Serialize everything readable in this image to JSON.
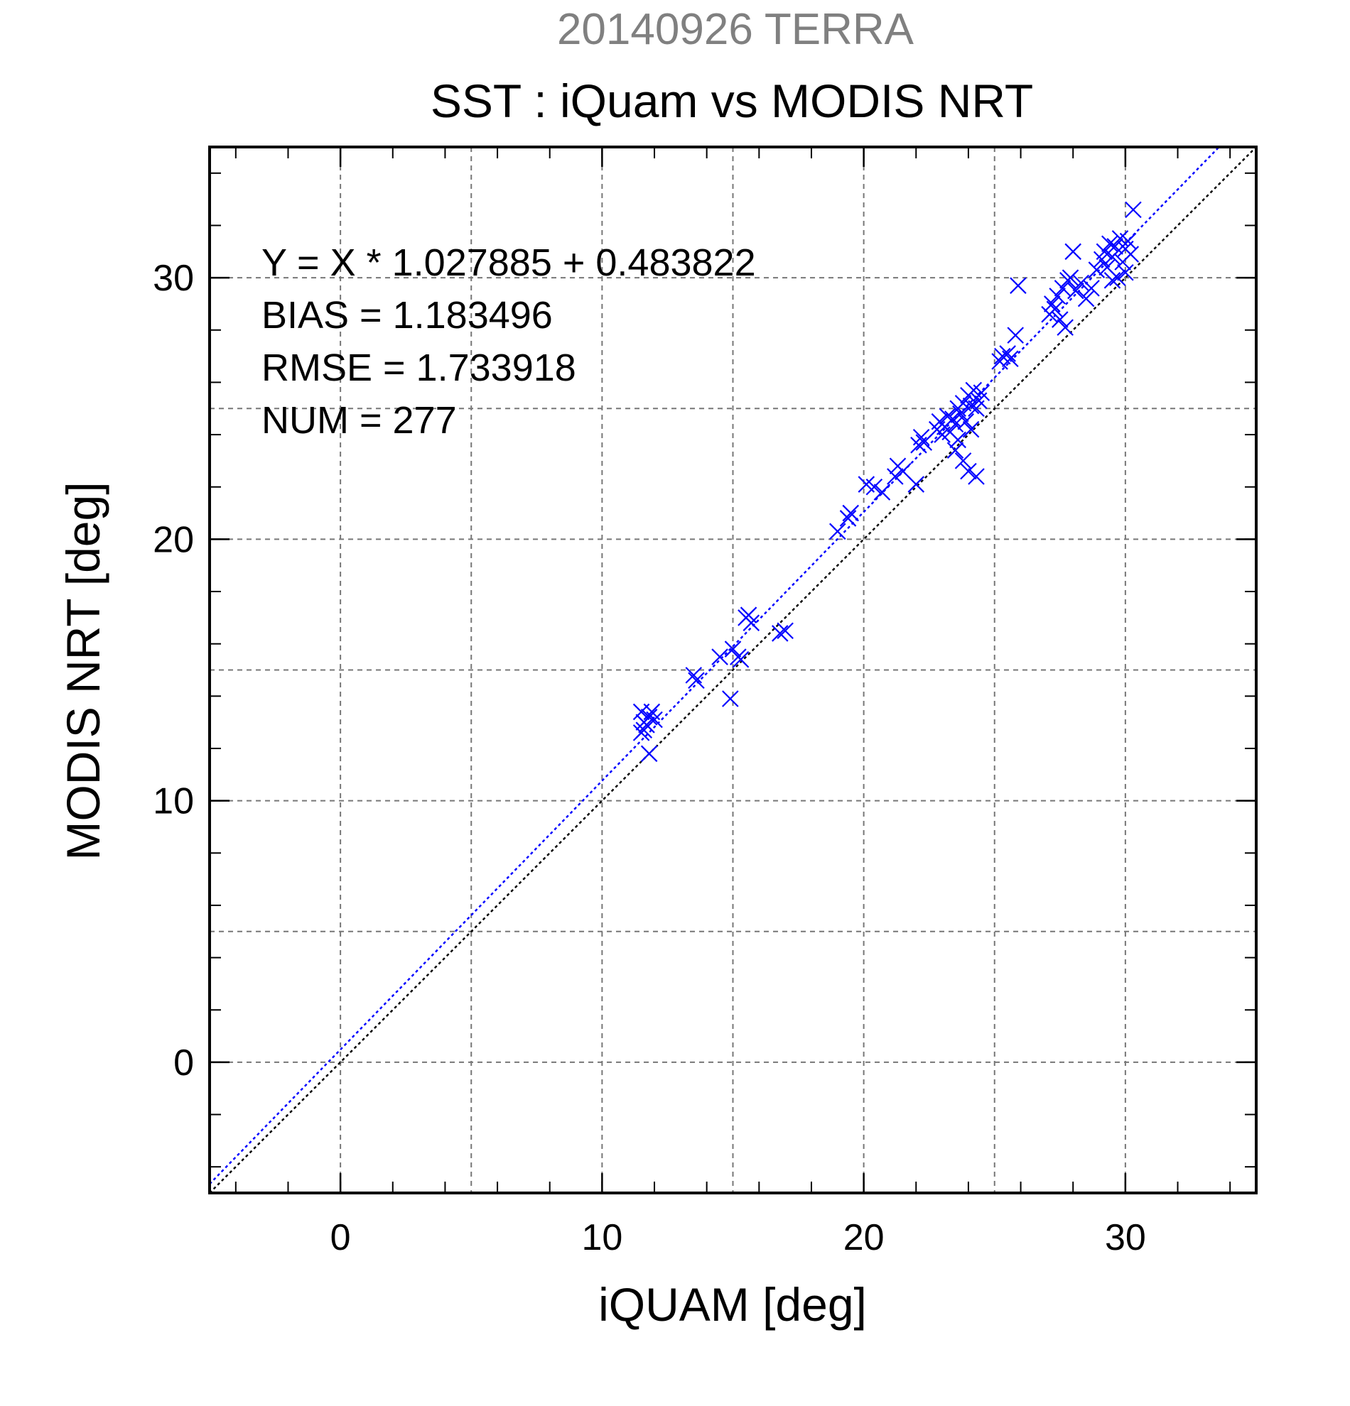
{
  "chart_data": {
    "type": "scatter",
    "suptitle": "20140926 TERRA",
    "title": "SST : iQuam vs MODIS NRT",
    "xlabel": "iQUAM [deg]",
    "ylabel": "MODIS NRT [deg]",
    "xlim": [
      -5,
      35
    ],
    "ylim": [
      -5,
      35
    ],
    "xticks": [
      0,
      10,
      20,
      30
    ],
    "yticks": [
      0,
      10,
      20,
      30
    ],
    "grid": true,
    "annotations": [
      "Y = X * 1.027885 + 0.483822",
      "BIAS = 1.183496",
      "RMSE = 1.733918",
      "NUM = 277"
    ],
    "fit": {
      "slope": 1.027885,
      "intercept": 0.483822
    },
    "colors": {
      "points": "#0000ff",
      "fit_line": "#0000ff",
      "identity_line": "#000000",
      "grid": "#777777",
      "suptitle": "#808080"
    },
    "points": [
      [
        11.5,
        12.6
      ],
      [
        11.6,
        13.0
      ],
      [
        11.5,
        13.4
      ],
      [
        11.7,
        12.9
      ],
      [
        11.8,
        13.2
      ],
      [
        11.9,
        13.4
      ],
      [
        12.0,
        13.1
      ],
      [
        11.6,
        12.7
      ],
      [
        11.8,
        11.8
      ],
      [
        13.5,
        14.8
      ],
      [
        13.6,
        14.6
      ],
      [
        14.5,
        15.5
      ],
      [
        14.9,
        13.9
      ],
      [
        15.0,
        15.8
      ],
      [
        15.2,
        15.5
      ],
      [
        15.3,
        15.4
      ],
      [
        15.5,
        17.0
      ],
      [
        15.6,
        17.1
      ],
      [
        15.7,
        16.8
      ],
      [
        16.8,
        16.4
      ],
      [
        17.0,
        16.5
      ],
      [
        19.0,
        20.3
      ],
      [
        19.4,
        20.8
      ],
      [
        19.5,
        21.0
      ],
      [
        20.1,
        22.1
      ],
      [
        20.4,
        22.0
      ],
      [
        20.7,
        21.8
      ],
      [
        21.2,
        22.4
      ],
      [
        21.3,
        22.8
      ],
      [
        21.5,
        22.6
      ],
      [
        22.0,
        22.1
      ],
      [
        22.1,
        23.6
      ],
      [
        22.2,
        23.9
      ],
      [
        22.3,
        23.7
      ],
      [
        22.8,
        24.2
      ],
      [
        22.9,
        24.5
      ],
      [
        23.0,
        24.0
      ],
      [
        23.1,
        24.3
      ],
      [
        23.2,
        24.7
      ],
      [
        23.3,
        24.1
      ],
      [
        23.4,
        24.6
      ],
      [
        23.5,
        24.4
      ],
      [
        23.6,
        25.0
      ],
      [
        23.7,
        24.8
      ],
      [
        23.8,
        25.2
      ],
      [
        23.9,
        24.5
      ],
      [
        24.0,
        25.5
      ],
      [
        24.1,
        25.1
      ],
      [
        24.2,
        25.7
      ],
      [
        24.3,
        25.0
      ],
      [
        24.4,
        25.3
      ],
      [
        24.5,
        25.6
      ],
      [
        23.5,
        23.4
      ],
      [
        23.8,
        23.0
      ],
      [
        24.0,
        22.6
      ],
      [
        24.3,
        22.4
      ],
      [
        23.6,
        23.8
      ],
      [
        24.1,
        24.2
      ],
      [
        25.2,
        26.8
      ],
      [
        25.3,
        27.0
      ],
      [
        25.5,
        27.1
      ],
      [
        25.6,
        26.9
      ],
      [
        25.8,
        27.8
      ],
      [
        25.9,
        29.7
      ],
      [
        27.1,
        28.6
      ],
      [
        27.2,
        29.0
      ],
      [
        27.3,
        28.8
      ],
      [
        27.4,
        29.3
      ],
      [
        27.5,
        28.4
      ],
      [
        27.6,
        29.6
      ],
      [
        27.7,
        28.1
      ],
      [
        27.8,
        29.9
      ],
      [
        27.9,
        30.0
      ],
      [
        28.0,
        31.0
      ],
      [
        28.1,
        29.5
      ],
      [
        28.3,
        29.8
      ],
      [
        28.5,
        29.2
      ],
      [
        28.7,
        29.6
      ],
      [
        28.9,
        30.3
      ],
      [
        29.1,
        30.7
      ],
      [
        29.2,
        31.0
      ],
      [
        29.3,
        30.4
      ],
      [
        29.4,
        31.3
      ],
      [
        29.5,
        30.8
      ],
      [
        29.6,
        31.2
      ],
      [
        29.7,
        30.0
      ],
      [
        29.8,
        31.5
      ],
      [
        29.9,
        30.6
      ],
      [
        30.0,
        31.1
      ],
      [
        30.1,
        31.4
      ],
      [
        30.2,
        30.9
      ],
      [
        30.3,
        32.6
      ],
      [
        30.0,
        30.2
      ],
      [
        29.5,
        29.9
      ]
    ]
  }
}
